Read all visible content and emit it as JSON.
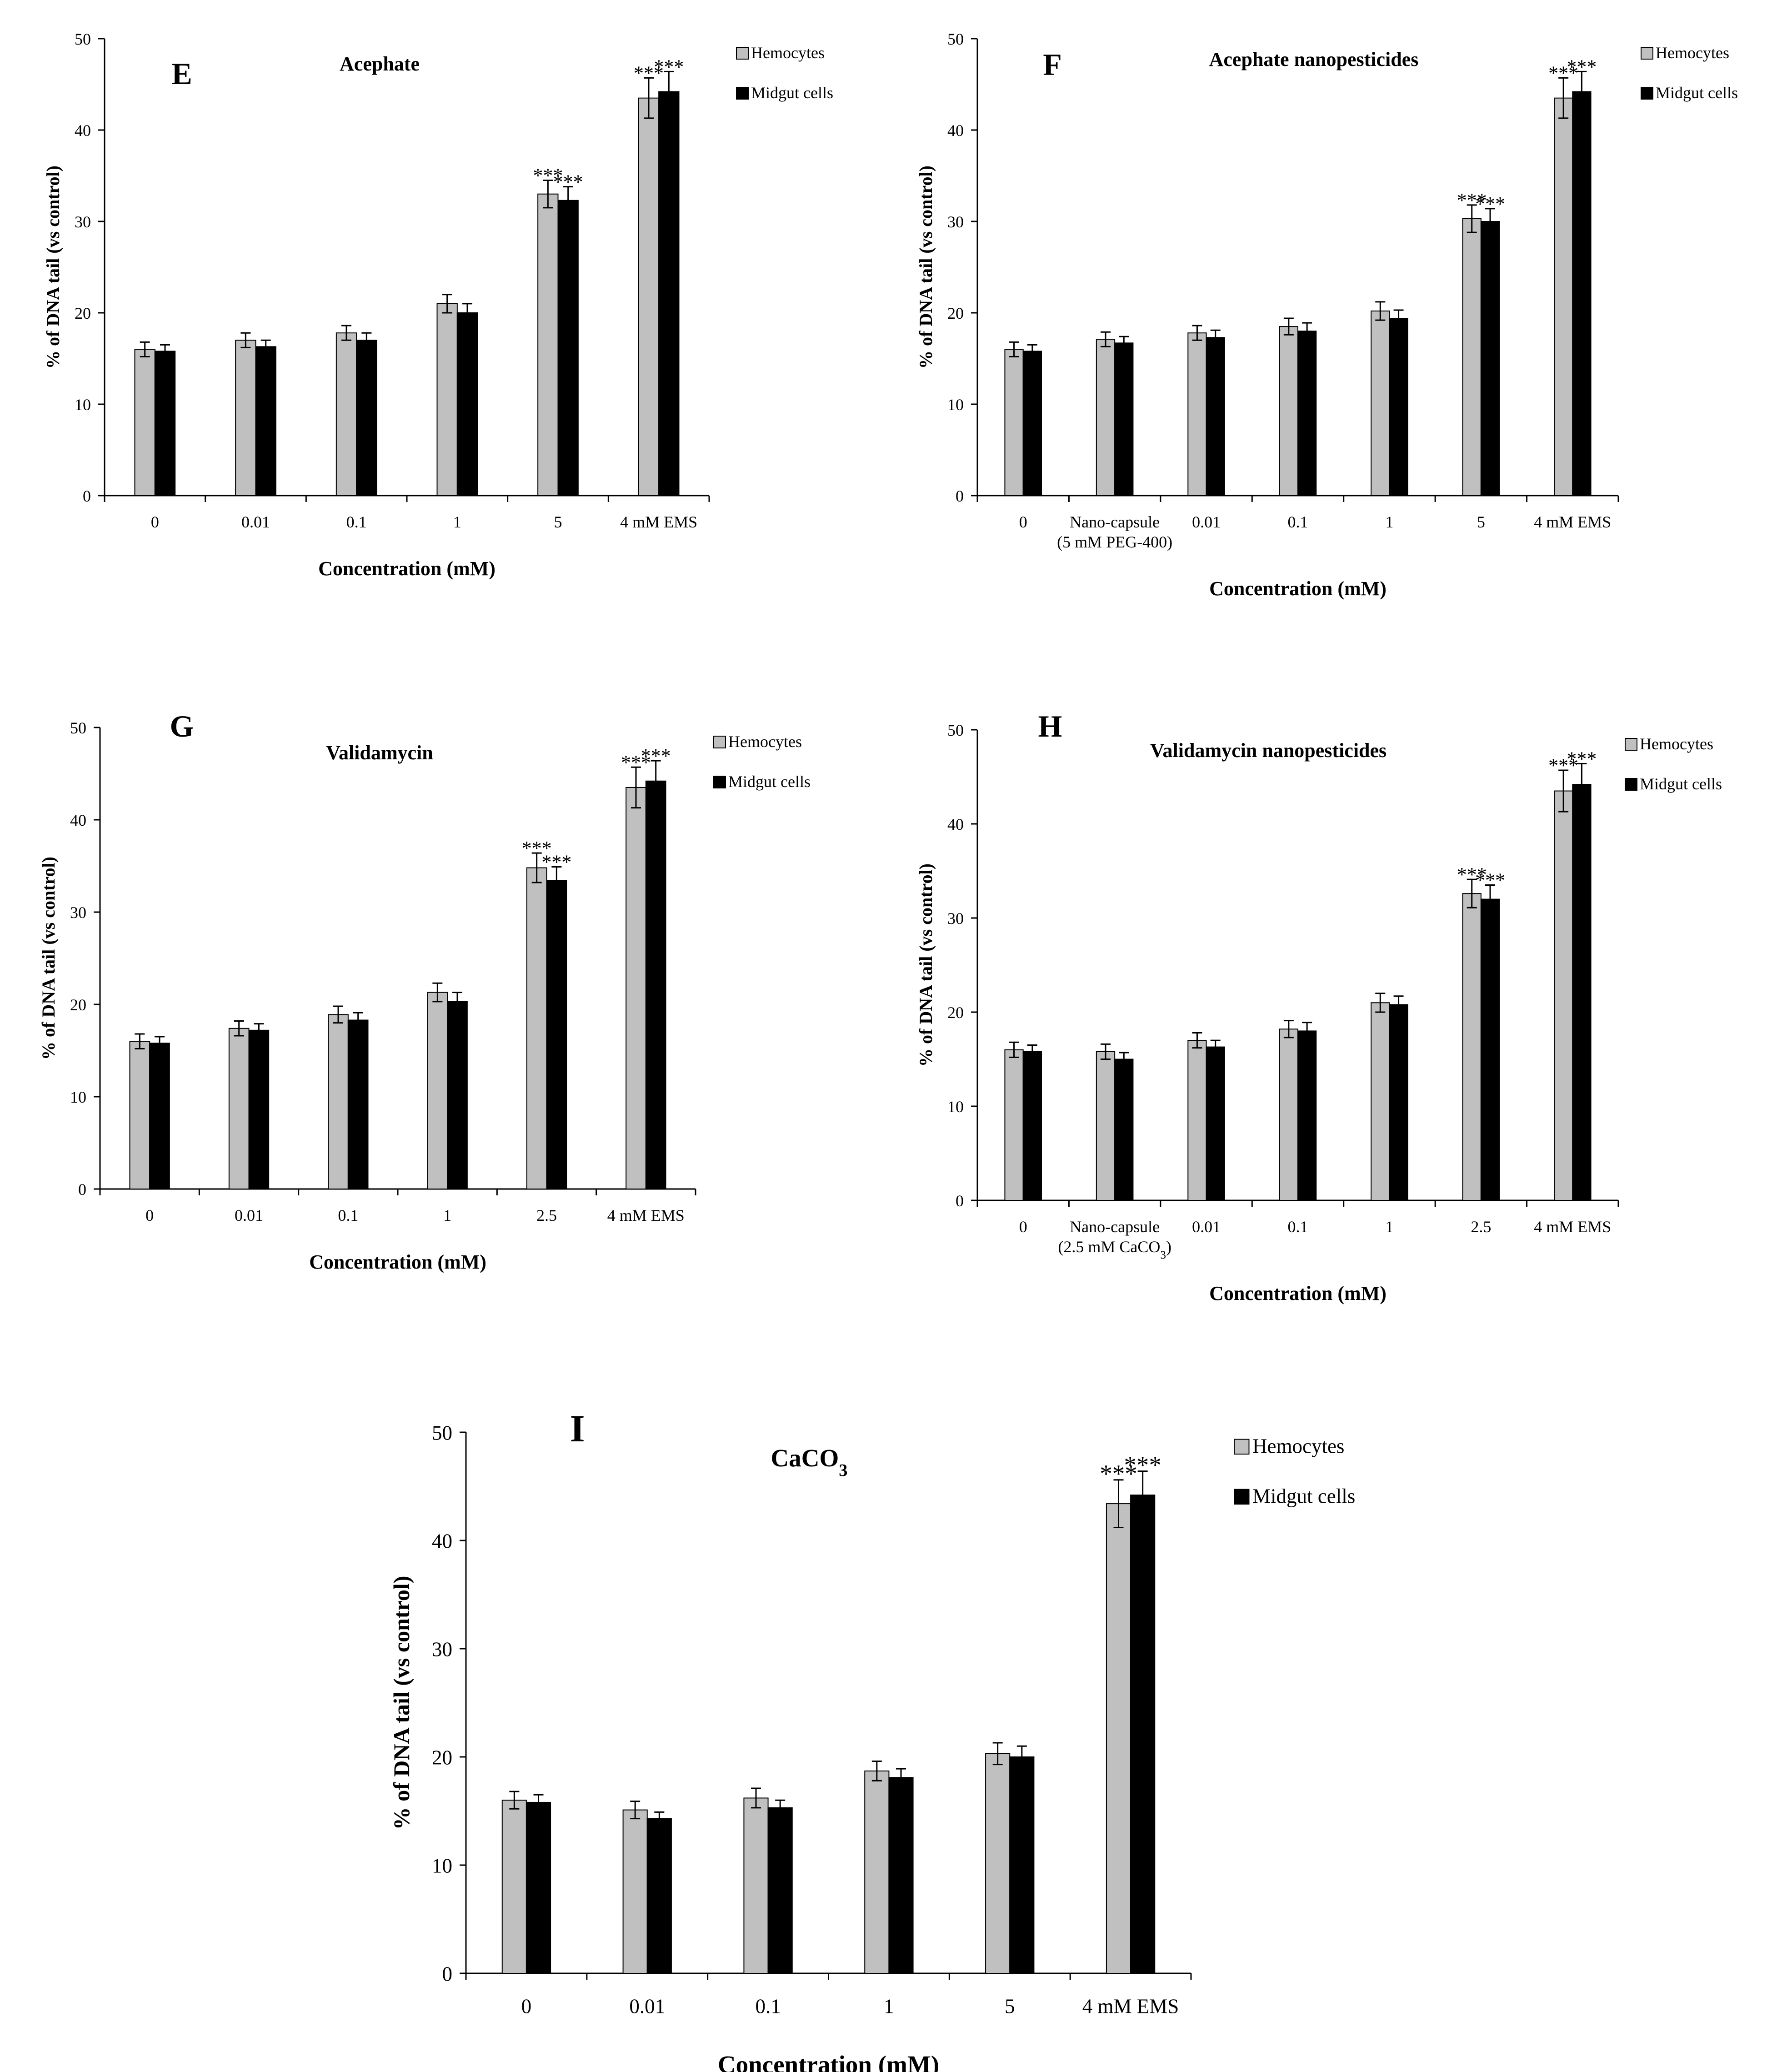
{
  "colors": {
    "hemocytes_fill": "#c0c0c0",
    "midgut_fill": "#000000",
    "bar_stroke": "#000000",
    "axis": "#000000"
  },
  "chart_data": [
    {
      "type": "bar",
      "panel_letter": "E",
      "title": "Acephate",
      "xlabel": "Concentration (mM)",
      "ylabel": "% of DNA tail (vs control)",
      "ylim": [
        0,
        50
      ],
      "yticks": [
        "0",
        "10",
        "20",
        "30",
        "40",
        "50"
      ],
      "legend": [
        "Hemocytes",
        "Midgut cells"
      ],
      "legend_position": "top-right",
      "categories": [
        [
          "0"
        ],
        [
          "0.01"
        ],
        [
          "0.1"
        ],
        [
          "1"
        ],
        [
          "5"
        ],
        [
          "4 mM EMS"
        ]
      ],
      "series": [
        {
          "name": "Hemocytes",
          "values": [
            16.0,
            17.0,
            17.8,
            21.0,
            33.0,
            43.5
          ],
          "errors": [
            0.8,
            0.8,
            0.8,
            1.0,
            1.5,
            2.2
          ]
        },
        {
          "name": "Midgut cells",
          "values": [
            15.8,
            16.3,
            17.0,
            20.0,
            32.3,
            44.2
          ],
          "errors": [
            0.7,
            0.7,
            0.8,
            1.0,
            1.5,
            2.2
          ]
        }
      ],
      "annotations": [
        {
          "category": 4,
          "series": 0,
          "text": "***"
        },
        {
          "category": 4,
          "series": 1,
          "text": "***"
        },
        {
          "category": 5,
          "series": 0,
          "text": "***"
        },
        {
          "category": 5,
          "series": 1,
          "text": "***"
        }
      ]
    },
    {
      "type": "bar",
      "panel_letter": "F",
      "title": "Acephate nanopesticides",
      "xlabel": "Concentration (mM)",
      "ylabel": "% of DNA tail (vs control)",
      "ylim": [
        0,
        50
      ],
      "yticks": [
        "0",
        "10",
        "20",
        "30",
        "40",
        "50"
      ],
      "legend": [
        "Hemocytes",
        "Midgut cells"
      ],
      "legend_position": "top-right",
      "categories": [
        [
          "0"
        ],
        [
          "Nano-capsule",
          "(5 mM PEG-400)"
        ],
        [
          "0.01"
        ],
        [
          "0.1"
        ],
        [
          "1"
        ],
        [
          "5"
        ],
        [
          "4 mM EMS"
        ]
      ],
      "series": [
        {
          "name": "Hemocytes",
          "values": [
            16.0,
            17.1,
            17.8,
            18.5,
            20.2,
            30.3,
            43.5
          ],
          "errors": [
            0.8,
            0.8,
            0.8,
            0.9,
            1.0,
            1.5,
            2.2
          ]
        },
        {
          "name": "Midgut cells",
          "values": [
            15.8,
            16.7,
            17.3,
            18.0,
            19.4,
            30.0,
            44.2
          ],
          "errors": [
            0.7,
            0.7,
            0.8,
            0.9,
            0.9,
            1.4,
            2.2
          ]
        }
      ],
      "annotations": [
        {
          "category": 5,
          "series": 0,
          "text": "***"
        },
        {
          "category": 5,
          "series": 1,
          "text": "***"
        },
        {
          "category": 6,
          "series": 0,
          "text": "***"
        },
        {
          "category": 6,
          "series": 1,
          "text": "***"
        }
      ]
    },
    {
      "type": "bar",
      "panel_letter": "G",
      "title": "Validamycin",
      "xlabel": "Concentration (mM)",
      "ylabel": "% of DNA tail (vs control)",
      "ylim": [
        0,
        50
      ],
      "yticks": [
        "0",
        "10",
        "20",
        "30",
        "40",
        "50"
      ],
      "legend": [
        "Hemocytes",
        "Midgut cells"
      ],
      "legend_position": "top-right",
      "categories": [
        [
          "0"
        ],
        [
          "0.01"
        ],
        [
          "0.1"
        ],
        [
          "1"
        ],
        [
          "2.5"
        ],
        [
          "4 mM EMS"
        ]
      ],
      "series": [
        {
          "name": "Hemocytes",
          "values": [
            16.0,
            17.4,
            18.9,
            21.3,
            34.8,
            43.5
          ],
          "errors": [
            0.8,
            0.8,
            0.9,
            1.0,
            1.6,
            2.2
          ]
        },
        {
          "name": "Midgut cells",
          "values": [
            15.8,
            17.2,
            18.3,
            20.3,
            33.4,
            44.2
          ],
          "errors": [
            0.7,
            0.7,
            0.8,
            1.0,
            1.5,
            2.2
          ]
        }
      ],
      "annotations": [
        {
          "category": 4,
          "series": 0,
          "text": "***"
        },
        {
          "category": 4,
          "series": 1,
          "text": "***"
        },
        {
          "category": 5,
          "series": 0,
          "text": "***"
        },
        {
          "category": 5,
          "series": 1,
          "text": "***"
        }
      ]
    },
    {
      "type": "bar",
      "panel_letter": "H",
      "title": "Validamycin nanopesticides",
      "xlabel": "Concentration (mM)",
      "ylabel": "% of DNA tail (vs control)",
      "ylim": [
        0,
        50
      ],
      "yticks": [
        "0",
        "10",
        "20",
        "30",
        "40",
        "50"
      ],
      "legend": [
        "Hemocytes",
        "Midgut cells"
      ],
      "legend_position": "top-right",
      "categories": [
        [
          "0"
        ],
        [
          "Nano-capsule",
          "(2.5 mM CaCO₃)"
        ],
        [
          "0.01"
        ],
        [
          "0.1"
        ],
        [
          "1"
        ],
        [
          "2.5"
        ],
        [
          "4 mM EMS"
        ]
      ],
      "series": [
        {
          "name": "Hemocytes",
          "values": [
            16.0,
            15.8,
            17.0,
            18.2,
            21.0,
            32.6,
            43.5
          ],
          "errors": [
            0.8,
            0.8,
            0.8,
            0.9,
            1.0,
            1.5,
            2.2
          ]
        },
        {
          "name": "Midgut cells",
          "values": [
            15.8,
            15.0,
            16.3,
            18.0,
            20.8,
            32.0,
            44.2
          ],
          "errors": [
            0.7,
            0.7,
            0.7,
            0.9,
            0.9,
            1.5,
            2.2
          ]
        }
      ],
      "annotations": [
        {
          "category": 5,
          "series": 0,
          "text": "***"
        },
        {
          "category": 5,
          "series": 1,
          "text": "***"
        },
        {
          "category": 6,
          "series": 0,
          "text": "***"
        },
        {
          "category": 6,
          "series": 1,
          "text": "***"
        }
      ]
    },
    {
      "type": "bar",
      "panel_letter": "I",
      "title": "CaCO₃",
      "xlabel": "Concentration (mM)",
      "ylabel": "% of DNA tail (vs control)",
      "ylim": [
        0,
        50
      ],
      "yticks": [
        "0",
        "10",
        "20",
        "30",
        "40",
        "50"
      ],
      "legend": [
        "Hemocytes",
        "Midgut cells"
      ],
      "legend_position": "top-right",
      "categories": [
        [
          "0"
        ],
        [
          "0.01"
        ],
        [
          "0.1"
        ],
        [
          "1"
        ],
        [
          "5"
        ],
        [
          "4 mM EMS"
        ]
      ],
      "series": [
        {
          "name": "Hemocytes",
          "values": [
            16.0,
            15.1,
            16.2,
            18.7,
            20.3,
            43.4
          ],
          "errors": [
            0.8,
            0.8,
            0.9,
            0.9,
            1.0,
            2.2
          ]
        },
        {
          "name": "Midgut cells",
          "values": [
            15.8,
            14.3,
            15.3,
            18.1,
            20.0,
            44.2
          ],
          "errors": [
            0.7,
            0.6,
            0.7,
            0.8,
            1.0,
            2.2
          ]
        }
      ],
      "annotations": [
        {
          "category": 5,
          "series": 0,
          "text": "***"
        },
        {
          "category": 5,
          "series": 1,
          "text": "***"
        }
      ]
    }
  ]
}
